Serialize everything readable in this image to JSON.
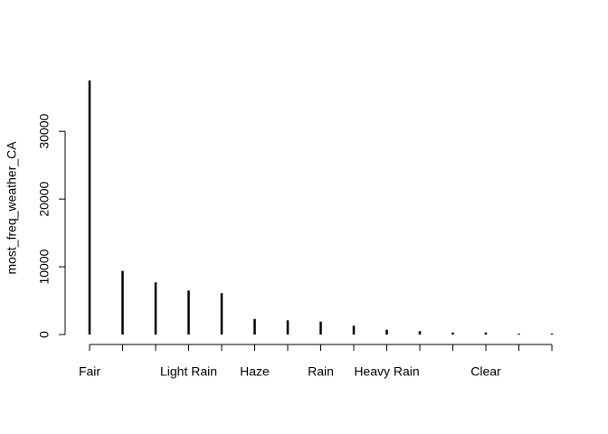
{
  "chart_data": {
    "type": "bar",
    "y_label": "most_freq_weather_CA",
    "categories": [
      "Fair",
      null,
      null,
      "Light Rain",
      null,
      "Haze",
      null,
      "Rain",
      null,
      "Heavy Rain",
      null,
      null,
      "Clear",
      null,
      null
    ],
    "values": [
      37500,
      9400,
      7700,
      6500,
      6100,
      2300,
      2100,
      1900,
      1300,
      700,
      500,
      300,
      300,
      150,
      150
    ],
    "color": "#000000",
    "ylim": [
      0,
      37500
    ],
    "yticks": [
      0,
      10000,
      20000,
      30000
    ],
    "grid": false
  }
}
